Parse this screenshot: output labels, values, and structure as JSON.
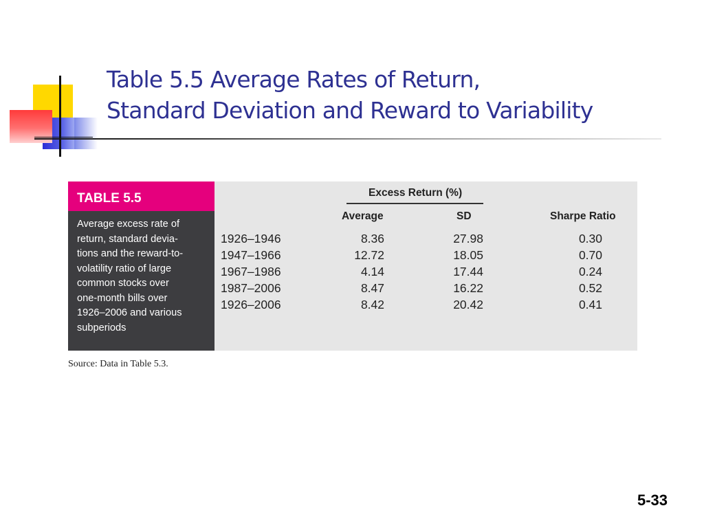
{
  "slide": {
    "title_line1": "Table 5.5 Average Rates of Return,",
    "title_line2": "Standard Deviation and Reward to Variability",
    "slide_number": "5-33"
  },
  "table": {
    "label": "TABLE 5.5",
    "description_lines": [
      "Average excess rate of",
      "return, standard devia-",
      "tions and the reward-to-",
      "volatility ratio of large",
      "common stocks over",
      "one-month bills over",
      "1926–2006 and various",
      "subperiods"
    ],
    "group_header": "Excess Return (%)",
    "columns": {
      "average": "Average",
      "sd": "SD",
      "sharpe": "Sharpe Ratio"
    },
    "rows": [
      {
        "period": "1926–1946",
        "average": "8.36",
        "sd": "27.98",
        "sharpe": "0.30"
      },
      {
        "period": "1947–1966",
        "average": "12.72",
        "sd": "18.05",
        "sharpe": "0.70"
      },
      {
        "period": "1967–1986",
        "average": "4.14",
        "sd": "17.44",
        "sharpe": "0.24"
      },
      {
        "period": "1987–2006",
        "average": "8.47",
        "sd": "16.22",
        "sharpe": "0.52"
      },
      {
        "period": "1926–2006",
        "average": "8.42",
        "sd": "20.42",
        "sharpe": "0.41"
      }
    ],
    "source": "Source: Data in Table 5.3."
  },
  "colors": {
    "title": "#2e3192",
    "table_label_bg": "#e5007d",
    "panel_bg": "#3d3d40",
    "table_bg": "#e6e6e6"
  }
}
